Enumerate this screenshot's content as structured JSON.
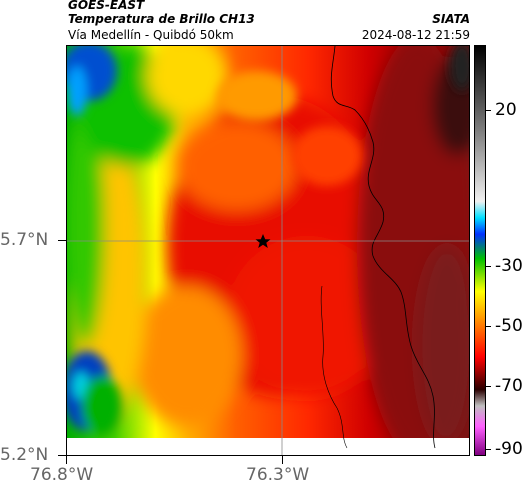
{
  "header": {
    "satellite": "GOES-EAST",
    "product": "Temperatura de Brillo CH13",
    "organization": "SIATA",
    "location": "Vía Medellín - Quibdó 50km",
    "timestamp": "2024-08-12 21:59"
  },
  "axes": {
    "lat_ticks": [
      "5.7°N",
      "5.2°N"
    ],
    "lon_ticks": [
      "76.8°W",
      "76.3°W"
    ]
  },
  "colorbar": {
    "ticks": [
      "20",
      "-30",
      "-50",
      "-70",
      "-90"
    ],
    "colors_warm_to_cold": [
      "#8b0000",
      "#c80000",
      "#ff2000",
      "#ff6000",
      "#ffa000",
      "#ffff00",
      "#00c000",
      "#00c0c0",
      "#0060ff",
      "#00008b"
    ]
  },
  "markers": {
    "city": "star-marker"
  }
}
